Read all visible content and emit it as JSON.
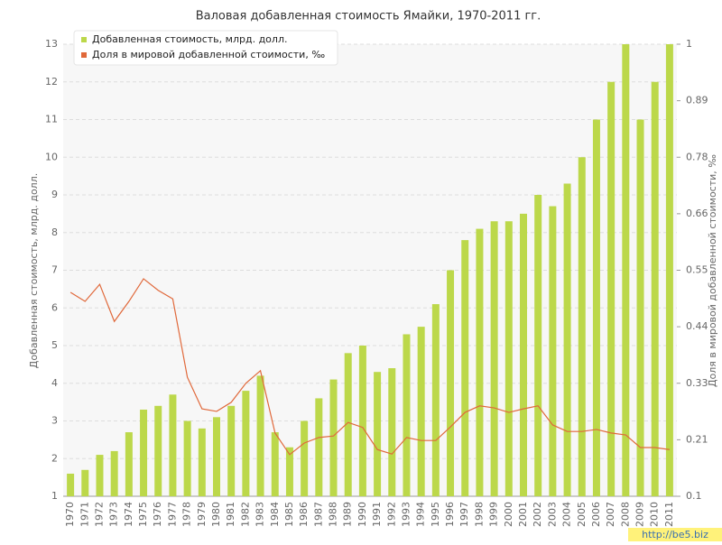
{
  "chart_data": {
    "type": "bar",
    "title": "Валовая добавленная стоимость Ямайки, 1970-2011 гг.",
    "categories": [
      "1970",
      "1971",
      "1972",
      "1973",
      "1974",
      "1975",
      "1976",
      "1977",
      "1978",
      "1979",
      "1980",
      "1981",
      "1982",
      "1983",
      "1984",
      "1985",
      "1986",
      "1987",
      "1988",
      "1989",
      "1990",
      "1991",
      "1992",
      "1993",
      "1994",
      "1995",
      "1996",
      "1997",
      "1998",
      "1999",
      "2000",
      "2001",
      "2002",
      "2003",
      "2004",
      "2005",
      "2006",
      "2007",
      "2008",
      "2009",
      "2010",
      "2011"
    ],
    "series": [
      {
        "name": "Добавленная стоимость, млрд. долл.",
        "color": "#bcd84a",
        "type": "bar",
        "values": [
          1.6,
          1.7,
          2.1,
          2.2,
          2.7,
          3.3,
          3.4,
          3.7,
          3.0,
          2.8,
          3.1,
          3.4,
          3.8,
          4.2,
          2.7,
          2.3,
          3.0,
          3.6,
          4.1,
          4.8,
          5.0,
          4.3,
          4.4,
          5.3,
          5.5,
          6.1,
          7.0,
          7.8,
          8.1,
          8.3,
          8.3,
          8.5,
          9.0,
          8.7,
          9.3,
          10.0,
          11.0,
          12.0,
          13.0,
          11.0,
          12.0,
          13.0
        ]
      },
      {
        "name": "Доля в мировой добавленной стоимости, ‰",
        "color": "#e0683a",
        "type": "line",
        "axis": "y2",
        "values": [
          0.506,
          0.488,
          0.522,
          0.448,
          0.488,
          0.533,
          0.51,
          0.493,
          0.337,
          0.274,
          0.269,
          0.287,
          0.325,
          0.35,
          0.226,
          0.183,
          0.206,
          0.217,
          0.22,
          0.247,
          0.237,
          0.193,
          0.184,
          0.217,
          0.211,
          0.211,
          0.238,
          0.267,
          0.28,
          0.276,
          0.267,
          0.274,
          0.28,
          0.242,
          0.229,
          0.229,
          0.233,
          0.226,
          0.222,
          0.197,
          0.197,
          0.193
        ]
      }
    ],
    "y_label": "Добавленная стоимость, млрд. долл.",
    "y2_label": "Доля в мировой добавленной стоимости, ‰",
    "ylim": [
      1,
      13
    ],
    "yticks": [
      1,
      2,
      3,
      4,
      5,
      6,
      7,
      8,
      9,
      10,
      11,
      12,
      13
    ],
    "y2lim": [
      0.1,
      1
    ],
    "y2ticks": [
      0.1,
      {
        "value": 0.2125,
        "label": "0.21"
      },
      {
        "value": 0.325,
        "label": "0.33"
      },
      {
        "value": 0.4375,
        "label": "0.44"
      },
      0.55,
      {
        "value": 0.6625,
        "label": "0.66"
      },
      {
        "value": 0.775,
        "label": "0.78"
      },
      {
        "value": 0.8875,
        "label": "0.89"
      },
      1
    ],
    "grid": true,
    "legend": "top-left"
  },
  "watermark": "http://be5.biz"
}
